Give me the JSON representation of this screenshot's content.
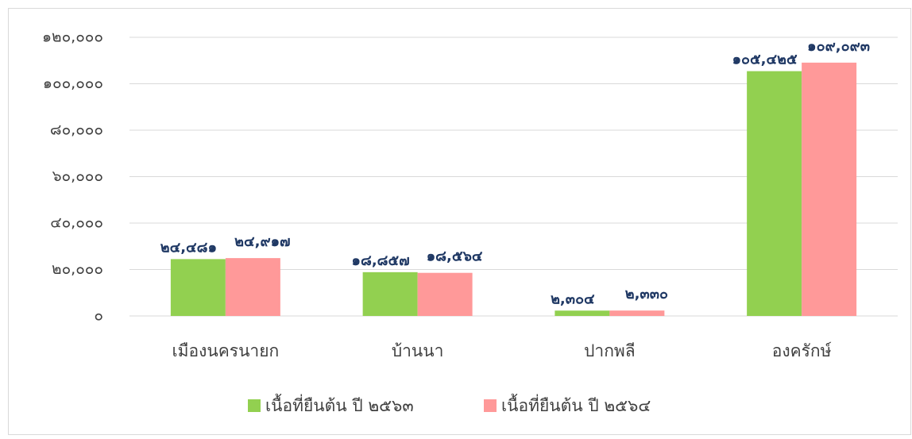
{
  "chart_data": {
    "type": "bar",
    "categories": [
      "เมืองนครนายก",
      "บ้านนา",
      "ปากพลี",
      "องครักษ์"
    ],
    "series": [
      {
        "name": "เนื้อที่ยืนต้น ปี ๒๕๖๓",
        "color": "#92d050",
        "values": [
          24481,
          18857,
          2304,
          105425
        ],
        "value_labels": [
          "๒๔,๔๘๑",
          "๑๘,๘๕๗",
          "๒,๓๐๔",
          "๑๐๕,๔๒๕"
        ]
      },
      {
        "name": "เนื้อที่ยืนต้น ปี ๒๕๖๔",
        "color": "#ff9999",
        "values": [
          24917,
          18564,
          2330,
          109093
        ],
        "value_labels": [
          "๒๔,๙๑๗",
          "๑๘,๕๖๔",
          "๒,๓๓๐",
          "๑๐๙,๐๙๓"
        ]
      }
    ],
    "ylim": [
      0,
      120000
    ],
    "yticks": [
      {
        "value": 0,
        "label": "๐"
      },
      {
        "value": 20000,
        "label": "๒๐,๐๐๐"
      },
      {
        "value": 40000,
        "label": "๔๐,๐๐๐"
      },
      {
        "value": 60000,
        "label": "๖๐,๐๐๐"
      },
      {
        "value": 80000,
        "label": "๘๐,๐๐๐"
      },
      {
        "value": 100000,
        "label": "๑๐๐,๐๐๐"
      },
      {
        "value": 120000,
        "label": "๑๒๐,๐๐๐"
      }
    ],
    "grid": true,
    "legend": "bottom"
  }
}
